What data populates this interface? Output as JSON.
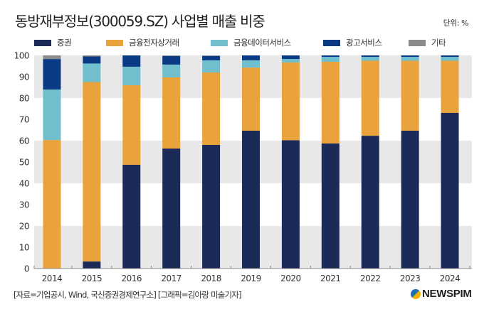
{
  "header": {
    "title": "동방재부정보(300059.SZ) 사업별 매출 비중",
    "unit": "단위: %"
  },
  "footer": {
    "source": "[자료=기업공시, Wind, 국신증권경제연구소] [그래픽=김아랑 미술기자]",
    "logo": "NEWSPIM"
  },
  "chart_data": {
    "type": "bar",
    "stacked": true,
    "title": "동방재부정보(300059.SZ) 사업별 매출 비중",
    "unit": "%",
    "xlabel": "",
    "ylabel": "",
    "ylim": [
      0,
      100
    ],
    "yticks": [
      0,
      10,
      20,
      30,
      40,
      50,
      60,
      70,
      80,
      90,
      100
    ],
    "grid": "alternating horizontal bands",
    "legend_position": "top",
    "categories": [
      "2014",
      "2015",
      "2016",
      "2017",
      "2018",
      "2019",
      "2020",
      "2021",
      "2022",
      "2023",
      "2024"
    ],
    "series": [
      {
        "name": "증권",
        "color": "#1c2a57",
        "values": [
          0,
          3.3,
          48.7,
          56.3,
          58.0,
          64.7,
          60.2,
          58.7,
          62.3,
          64.7,
          73.0
        ]
      },
      {
        "name": "금융전자상거래",
        "color": "#e9a23c",
        "values": [
          60.3,
          84.2,
          37.3,
          33.4,
          34.0,
          29.6,
          36.5,
          38.3,
          35.2,
          32.8,
          24.5
        ]
      },
      {
        "name": "금융데이터서비스",
        "color": "#71bfcc",
        "values": [
          23.7,
          8.7,
          8.7,
          6.0,
          5.7,
          3.4,
          1.6,
          2.3,
          1.8,
          1.8,
          1.8
        ]
      },
      {
        "name": "광고서비스",
        "color": "#0a3a84",
        "values": [
          14.3,
          3.3,
          5.3,
          4.0,
          2.0,
          2.3,
          1.7,
          0.7,
          0.7,
          0.7,
          0.7
        ]
      },
      {
        "name": "기타",
        "color": "#8a8a8a",
        "values": [
          1.7,
          0.5,
          0,
          0.3,
          0.3,
          0,
          0,
          0,
          0,
          0,
          0
        ]
      }
    ]
  }
}
